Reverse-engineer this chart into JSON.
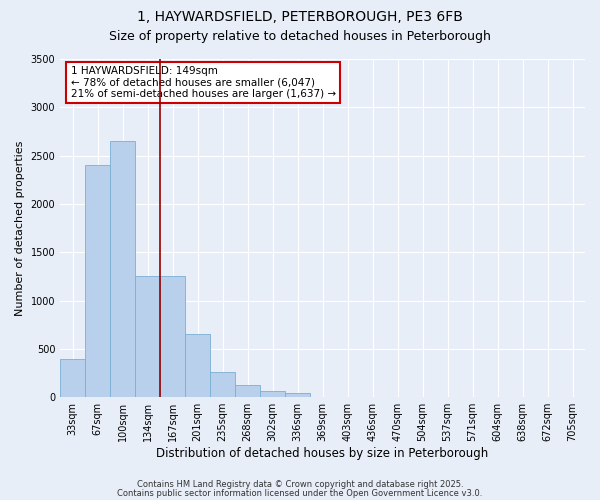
{
  "title": "1, HAYWARDSFIELD, PETERBOROUGH, PE3 6FB",
  "subtitle": "Size of property relative to detached houses in Peterborough",
  "xlabel": "Distribution of detached houses by size in Peterborough",
  "ylabel": "Number of detached properties",
  "categories": [
    "33sqm",
    "67sqm",
    "100sqm",
    "134sqm",
    "167sqm",
    "201sqm",
    "235sqm",
    "268sqm",
    "302sqm",
    "336sqm",
    "369sqm",
    "403sqm",
    "436sqm",
    "470sqm",
    "504sqm",
    "537sqm",
    "571sqm",
    "604sqm",
    "638sqm",
    "672sqm",
    "705sqm"
  ],
  "bar_values": [
    400,
    2400,
    2650,
    1250,
    1250,
    650,
    260,
    130,
    60,
    40,
    0,
    0,
    0,
    0,
    0,
    0,
    0,
    0,
    0,
    0,
    0
  ],
  "bar_color": "#b8d0eb",
  "bar_edge_color": "#7aafd4",
  "background_color": "#e8eef8",
  "grid_color": "#ffffff",
  "vline_x": 3.5,
  "vline_color": "#990000",
  "annotation_text": "1 HAYWARDSFIELD: 149sqm\n← 78% of detached houses are smaller (6,047)\n21% of semi-detached houses are larger (1,637) →",
  "annotation_box_color": "#ffffff",
  "annotation_border_color": "#cc0000",
  "ylim": [
    0,
    3500
  ],
  "yticks": [
    0,
    500,
    1000,
    1500,
    2000,
    2500,
    3000,
    3500
  ],
  "footer_line1": "Contains HM Land Registry data © Crown copyright and database right 2025.",
  "footer_line2": "Contains public sector information licensed under the Open Government Licence v3.0.",
  "title_fontsize": 10,
  "subtitle_fontsize": 9,
  "tick_fontsize": 7,
  "ylabel_fontsize": 8,
  "xlabel_fontsize": 8.5,
  "annot_fontsize": 7.5,
  "footer_fontsize": 6
}
